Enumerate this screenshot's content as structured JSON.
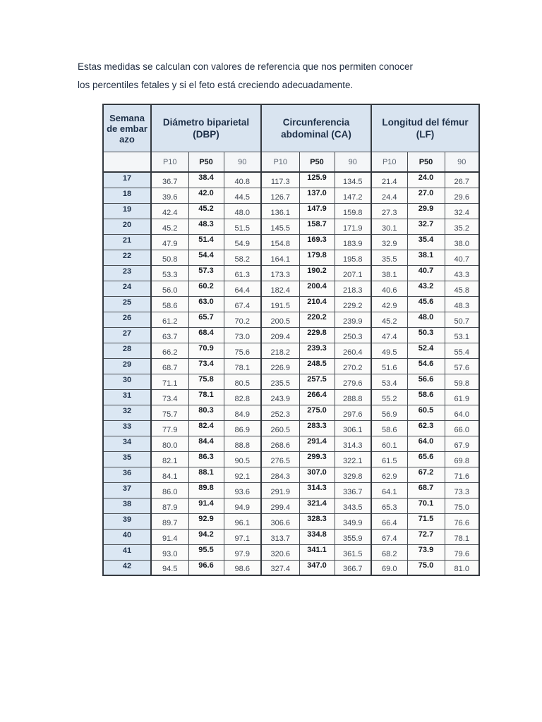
{
  "intro": {
    "line1": "Estas medidas se calculan con valores de referencia que nos permiten conocer",
    "line2": "los percentiles fetales y si el feto está creciendo adecuadamente."
  },
  "table": {
    "week_header": "Semana de embarazo",
    "groups": [
      {
        "label": "Diámetro biparietal (DBP)"
      },
      {
        "label": "Circunferencia abdominal (CA)"
      },
      {
        "label": "Longitud del fémur (LF)"
      }
    ],
    "subheaders": [
      "P10",
      "P50",
      "90"
    ],
    "rows": [
      {
        "week": "17",
        "dbp": [
          "36.7",
          "38.4",
          "40.8"
        ],
        "ca": [
          "117.3",
          "125.9",
          "134.5"
        ],
        "lf": [
          "21.4",
          "24.0",
          "26.7"
        ]
      },
      {
        "week": "18",
        "dbp": [
          "39.6",
          "42.0",
          "44.5"
        ],
        "ca": [
          "126.7",
          "137.0",
          "147.2"
        ],
        "lf": [
          "24.4",
          "27.0",
          "29.6"
        ]
      },
      {
        "week": "19",
        "dbp": [
          "42.4",
          "45.2",
          "48.0"
        ],
        "ca": [
          "136.1",
          "147.9",
          "159.8"
        ],
        "lf": [
          "27.3",
          "29.9",
          "32.4"
        ]
      },
      {
        "week": "20",
        "dbp": [
          "45.2",
          "48.3",
          "51.5"
        ],
        "ca": [
          "145.5",
          "158.7",
          "171.9"
        ],
        "lf": [
          "30.1",
          "32.7",
          "35.2"
        ]
      },
      {
        "week": "21",
        "dbp": [
          "47.9",
          "51.4",
          "54.9"
        ],
        "ca": [
          "154.8",
          "169.3",
          "183.9"
        ],
        "lf": [
          "32.9",
          "35.4",
          "38.0"
        ]
      },
      {
        "week": "22",
        "dbp": [
          "50.8",
          "54.4",
          "58.2"
        ],
        "ca": [
          "164.1",
          "179.8",
          "195.8"
        ],
        "lf": [
          "35.5",
          "38.1",
          "40.7"
        ]
      },
      {
        "week": "23",
        "dbp": [
          "53.3",
          "57.3",
          "61.3"
        ],
        "ca": [
          "173.3",
          "190.2",
          "207.1"
        ],
        "lf": [
          "38.1",
          "40.7",
          "43.3"
        ]
      },
      {
        "week": "24",
        "dbp": [
          "56.0",
          "60.2",
          "64.4"
        ],
        "ca": [
          "182.4",
          "200.4",
          "218.3"
        ],
        "lf": [
          "40.6",
          "43.2",
          "45.8"
        ]
      },
      {
        "week": "25",
        "dbp": [
          "58.6",
          "63.0",
          "67.4"
        ],
        "ca": [
          "191.5",
          "210.4",
          "229.2"
        ],
        "lf": [
          "42.9",
          "45.6",
          "48.3"
        ]
      },
      {
        "week": "26",
        "dbp": [
          "61.2",
          "65.7",
          "70.2"
        ],
        "ca": [
          "200.5",
          "220.2",
          "239.9"
        ],
        "lf": [
          "45.2",
          "48.0",
          "50.7"
        ]
      },
      {
        "week": "27",
        "dbp": [
          "63.7",
          "68.4",
          "73.0"
        ],
        "ca": [
          "209.4",
          "229.8",
          "250.3"
        ],
        "lf": [
          "47.4",
          "50.3",
          "53.1"
        ]
      },
      {
        "week": "28",
        "dbp": [
          "66.2",
          "70.9",
          "75.6"
        ],
        "ca": [
          "218.2",
          "239.3",
          "260.4"
        ],
        "lf": [
          "49.5",
          "52.4",
          "55.4"
        ]
      },
      {
        "week": "29",
        "dbp": [
          "68.7",
          "73.4",
          "78.1"
        ],
        "ca": [
          "226.9",
          "248.5",
          "270.2"
        ],
        "lf": [
          "51.6",
          "54.6",
          "57.6"
        ]
      },
      {
        "week": "30",
        "dbp": [
          "71.1",
          "75.8",
          "80.5"
        ],
        "ca": [
          "235.5",
          "257.5",
          "279.6"
        ],
        "lf": [
          "53.4",
          "56.6",
          "59.8"
        ]
      },
      {
        "week": "31",
        "dbp": [
          "73.4",
          "78.1",
          "82.8"
        ],
        "ca": [
          "243.9",
          "266.4",
          "288.8"
        ],
        "lf": [
          "55.2",
          "58.6",
          "61.9"
        ]
      },
      {
        "week": "32",
        "dbp": [
          "75.7",
          "80.3",
          "84.9"
        ],
        "ca": [
          "252.3",
          "275.0",
          "297.6"
        ],
        "lf": [
          "56.9",
          "60.5",
          "64.0"
        ]
      },
      {
        "week": "33",
        "dbp": [
          "77.9",
          "82.4",
          "86.9"
        ],
        "ca": [
          "260.5",
          "283.3",
          "306.1"
        ],
        "lf": [
          "58.6",
          "62.3",
          "66.0"
        ]
      },
      {
        "week": "34",
        "dbp": [
          "80.0",
          "84.4",
          "88.8"
        ],
        "ca": [
          "268.6",
          "291.4",
          "314.3"
        ],
        "lf": [
          "60.1",
          "64.0",
          "67.9"
        ]
      },
      {
        "week": "35",
        "dbp": [
          "82.1",
          "86.3",
          "90.5"
        ],
        "ca": [
          "276.5",
          "299.3",
          "322.1"
        ],
        "lf": [
          "61.5",
          "65.6",
          "69.8"
        ]
      },
      {
        "week": "36",
        "dbp": [
          "84.1",
          "88.1",
          "92.1"
        ],
        "ca": [
          "284.3",
          "307.0",
          "329.8"
        ],
        "lf": [
          "62.9",
          "67.2",
          "71.6"
        ]
      },
      {
        "week": "37",
        "dbp": [
          "86.0",
          "89.8",
          "93.6"
        ],
        "ca": [
          "291.9",
          "314.3",
          "336.7"
        ],
        "lf": [
          "64.1",
          "68.7",
          "73.3"
        ]
      },
      {
        "week": "38",
        "dbp": [
          "87.9",
          "91.4",
          "94.9"
        ],
        "ca": [
          "299.4",
          "321.4",
          "343.5"
        ],
        "lf": [
          "65.3",
          "70.1",
          "75.0"
        ]
      },
      {
        "week": "39",
        "dbp": [
          "89.7",
          "92.9",
          "96.1"
        ],
        "ca": [
          "306.6",
          "328.3",
          "349.9"
        ],
        "lf": [
          "66.4",
          "71.5",
          "76.6"
        ]
      },
      {
        "week": "40",
        "dbp": [
          "91.4",
          "94.2",
          "97.1"
        ],
        "ca": [
          "313.7",
          "334.8",
          "355.9"
        ],
        "lf": [
          "67.4",
          "72.7",
          "78.1"
        ]
      },
      {
        "week": "41",
        "dbp": [
          "93.0",
          "95.5",
          "97.9"
        ],
        "ca": [
          "320.6",
          "341.1",
          "361.5"
        ],
        "lf": [
          "68.2",
          "73.9",
          "79.6"
        ]
      },
      {
        "week": "42",
        "dbp": [
          "94.5",
          "96.6",
          "98.6"
        ],
        "ca": [
          "327.4",
          "347.0",
          "366.7"
        ],
        "lf": [
          "69.0",
          "75.0",
          "81.0"
        ]
      }
    ]
  }
}
